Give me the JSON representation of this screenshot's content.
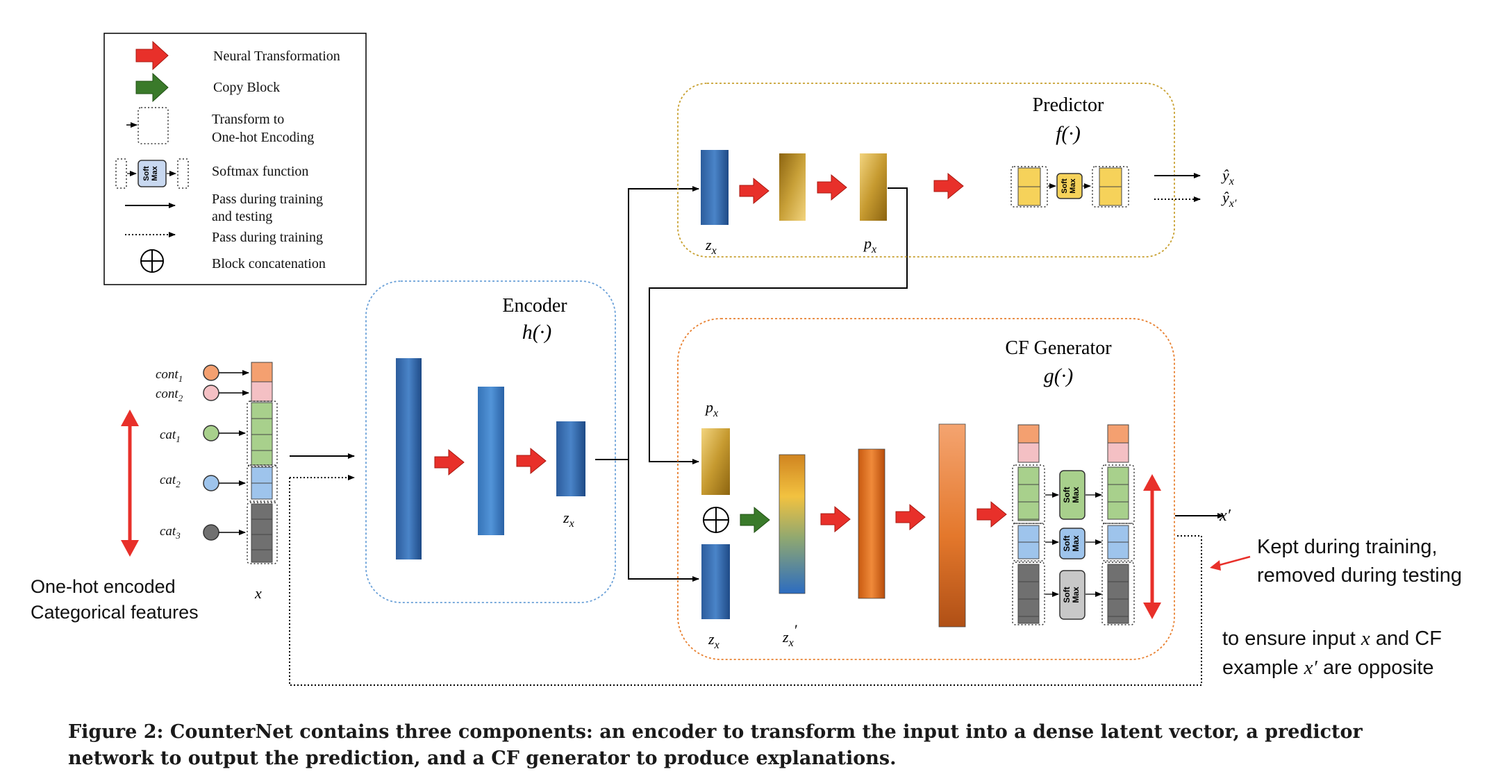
{
  "legend": {
    "items": [
      {
        "icon": "red-arrow-icon",
        "label": [
          "Neural Transformation"
        ]
      },
      {
        "icon": "green-arrow-icon",
        "label": [
          "Copy Block"
        ]
      },
      {
        "icon": "dotted-box-icon",
        "label": [
          "Transform to",
          "One-hot Encoding"
        ]
      },
      {
        "icon": "softmax-icon",
        "label": [
          "Softmax function"
        ]
      },
      {
        "icon": "solid-arrow-icon",
        "label": [
          "Pass during training",
          "and testing"
        ]
      },
      {
        "icon": "dotted-arrow-icon",
        "label": [
          "Pass during training"
        ]
      },
      {
        "icon": "circle-plus-icon",
        "label": [
          "Block concatenation"
        ]
      }
    ]
  },
  "softmax_label": [
    "Soft",
    "Max"
  ],
  "input": {
    "features": [
      "cont",
      "cont",
      "cat",
      "cat",
      "cat"
    ],
    "subscripts": [
      "1",
      "2",
      "1",
      "2",
      "3"
    ],
    "var": "x",
    "note": [
      "One-hot encoded",
      "Categorical features"
    ]
  },
  "encoder": {
    "title": "Encoder",
    "func": "h(·)",
    "zlabel": "z",
    "zsub": "x"
  },
  "predictor": {
    "title": "Predictor",
    "func": "f(·)",
    "zlabel": "z",
    "zsub": "x",
    "plabel": "p",
    "psub": "x",
    "outputs": [
      {
        "base": "ŷ",
        "sub": "x"
      },
      {
        "base": "ŷ",
        "sub": "x′"
      }
    ]
  },
  "generator": {
    "title": "CF Generator",
    "func": "g(·)",
    "plabel": "p",
    "psub": "x",
    "zlabel": "z",
    "zsub": "x",
    "zprime_label": "z",
    "zprime_sub": "x",
    "zprime_mark": "′",
    "output": "x′"
  },
  "annotations": {
    "kept": [
      "Kept during training,",
      "removed during testing"
    ],
    "ensure": [
      {
        "parts": [
          {
            "t": "to ensure input "
          },
          {
            "t": "x",
            "i": true
          },
          {
            "t": " and CF"
          }
        ]
      },
      {
        "parts": [
          {
            "t": "example "
          },
          {
            "t": "x′",
            "i": true
          },
          {
            "t": " are opposite"
          }
        ]
      }
    ]
  },
  "caption": "Figure 2: CounterNet contains three components: an encoder to transform the input into a dense latent vector, a predictor network to output the prediction, and a CF generator to produce explanations.",
  "colors": {
    "arrow_red": "#e8302a",
    "arrow_green": "#3a7a2a",
    "encoder_border": "#6aa0d8",
    "predictor_border": "#c8a030",
    "generator_border": "#e88030",
    "cont1": "#f4a070",
    "cont2": "#f4c0c4",
    "cat1": "#a8d08c",
    "cat2": "#9ec4ec",
    "cat3": "#707070",
    "yellow": "#f6d25a",
    "softmax_fill": "#c8d8f0"
  }
}
